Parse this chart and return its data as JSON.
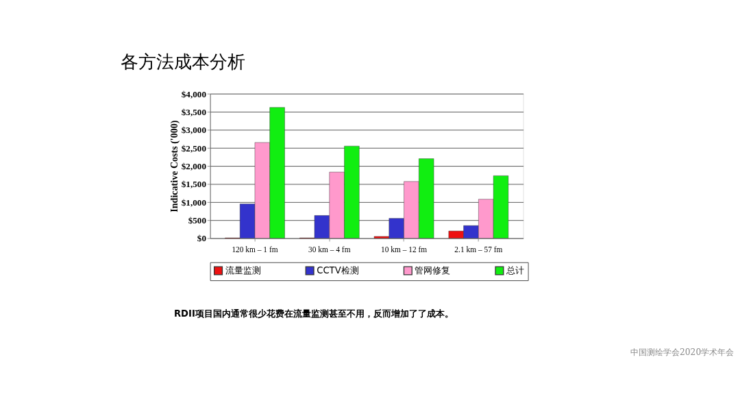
{
  "chart_data": {
    "type": "bar",
    "title": "各方法成本分析",
    "ylabel": "Indicative Costs ('000)",
    "categories": [
      "120 km – 1 fm",
      "30 km – 4 fm",
      "10 km – 12 fm",
      "2.1 km – 57 fm"
    ],
    "series": [
      {
        "name": "流量监测",
        "color": "#ee1111",
        "values": [
          10,
          10,
          50,
          200
        ]
      },
      {
        "name": "CCTV检测",
        "color": "#3333cc",
        "values": [
          950,
          630,
          550,
          350
        ]
      },
      {
        "name": "管网修复",
        "color": "#ff99cc",
        "values": [
          2650,
          1830,
          1570,
          1080
        ]
      },
      {
        "name": "总计",
        "color": "#11ee11",
        "values": [
          3620,
          2550,
          2200,
          1730
        ]
      }
    ],
    "ylim": [
      0,
      4000
    ],
    "yticks": [
      {
        "value": 0,
        "label": "$0"
      },
      {
        "value": 500,
        "label": "$500"
      },
      {
        "value": 1000,
        "label": "$1,000"
      },
      {
        "value": 1500,
        "label": "$1,500"
      },
      {
        "value": 2000,
        "label": "$2,000"
      },
      {
        "value": 2500,
        "label": "$2,500"
      },
      {
        "value": 3000,
        "label": "$3,000"
      },
      {
        "value": 3500,
        "label": "$3,500"
      },
      {
        "value": 4000,
        "label": "$4,000"
      }
    ],
    "grid": "y",
    "legend": "bottom",
    "annotations": [
      "RDII项目国内通常很少花费在流量监测甚至不用，反而增加了了成本。",
      "中国测绘学会2020学术年会"
    ]
  }
}
